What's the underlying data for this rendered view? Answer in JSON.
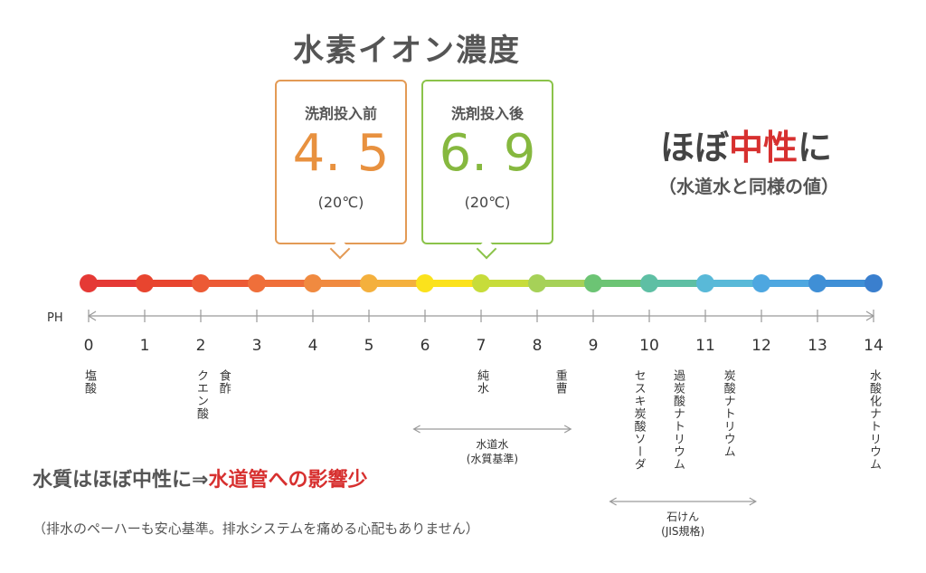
{
  "title": "水素イオン濃度",
  "before": {
    "label": "洗剤投入前",
    "value": "4. 5",
    "temp": "(20℃)",
    "ph": 4.5
  },
  "after": {
    "label": "洗剤投入後",
    "value": "6. 9",
    "temp": "(20℃)",
    "ph": 6.9
  },
  "headline": {
    "prefix": "ほぼ",
    "accent": "中性",
    "suffix": "に"
  },
  "subheadline": "（水道水と同様の値）",
  "scale": {
    "axis_label": "PH",
    "ticks": [
      "0",
      "1",
      "2",
      "3",
      "4",
      "5",
      "6",
      "7",
      "8",
      "9",
      "10",
      "11",
      "12",
      "13",
      "14"
    ],
    "colors": [
      "#e53935",
      "#e8452f",
      "#ec5a35",
      "#ef6f3a",
      "#f08a40",
      "#f4b03d",
      "#fbe21c",
      "#c7dc3a",
      "#a6d158",
      "#6cc474",
      "#5ebfa4",
      "#59b9d8",
      "#4ea7e0",
      "#3f8fd6",
      "#3a7fce"
    ]
  },
  "substances": [
    {
      "ph": 0,
      "name": "塩酸"
    },
    {
      "ph": 2,
      "name": "クエン酸"
    },
    {
      "ph": 2.4,
      "name": "食酢"
    },
    {
      "ph": 7,
      "name": "純水"
    },
    {
      "ph": 8.4,
      "name": "重曹"
    },
    {
      "ph": 9.8,
      "name": "セスキ炭酸ソーダ"
    },
    {
      "ph": 10.5,
      "name": "過炭酸ナトリウム"
    },
    {
      "ph": 11.4,
      "name": "炭酸ナトリウム"
    },
    {
      "ph": 14,
      "name": "水酸化ナトリウム"
    }
  ],
  "ranges": [
    {
      "from": 5.8,
      "to": 8.6,
      "line1": "水道水",
      "line2": "(水質基準)"
    },
    {
      "from": 9.3,
      "to": 11.9,
      "line1": "石けん",
      "line2": "(JIS規格)"
    }
  ],
  "summary": {
    "prefix": "水質はほぼ中性に⇒",
    "accent": "水道管への影響少"
  },
  "note": "（排水のペーハーも安心基準。排水システムを痛める心配もありません）"
}
